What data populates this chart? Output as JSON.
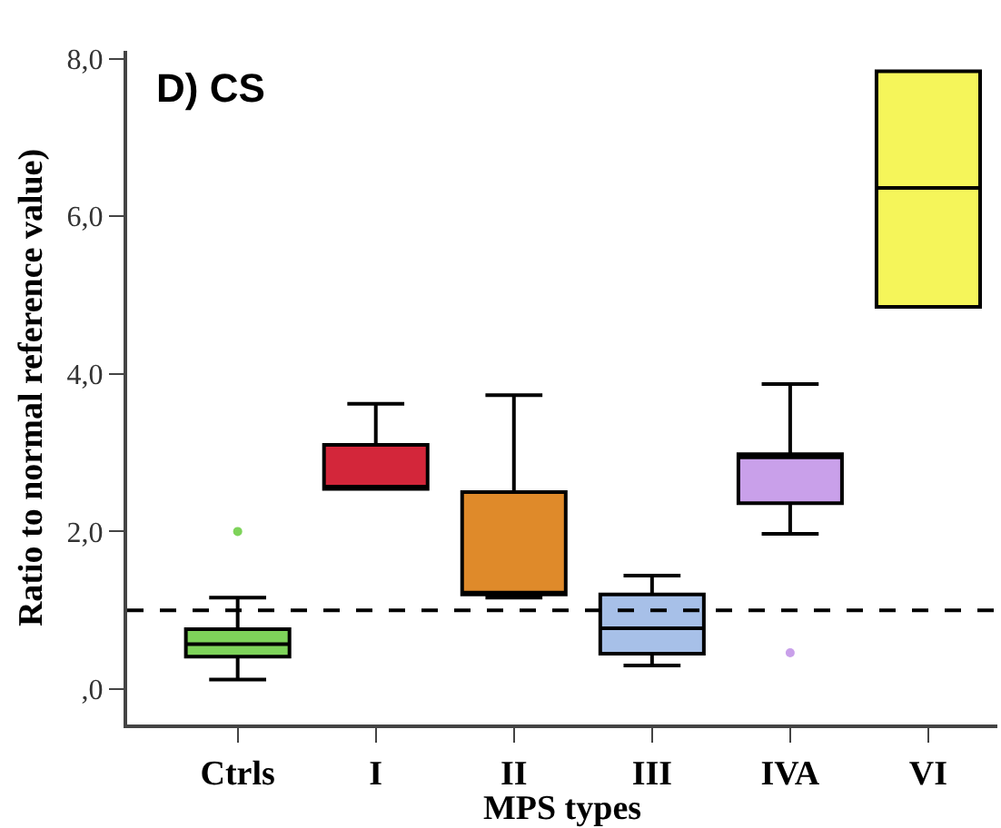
{
  "chart_data": {
    "type": "box",
    "title": "D) CS",
    "xlabel": "MPS types",
    "ylabel": "Ratio to normal reference value)",
    "categories": [
      "Ctrls",
      "I",
      "II",
      "III",
      "IVA",
      "VI"
    ],
    "colors": [
      "#7ed35a",
      "#d3263a",
      "#df8a2a",
      "#a7c0e8",
      "#c9a0ea",
      "#f5f55a"
    ],
    "boxes": [
      {
        "low": 0.12,
        "q1": 0.41,
        "median": 0.57,
        "q3": 0.76,
        "high": 1.16,
        "outliers": [
          2.0
        ]
      },
      {
        "low": 2.54,
        "q1": 2.54,
        "median": 2.57,
        "q3": 3.1,
        "high": 3.62
      },
      {
        "low": 1.16,
        "q1": 1.2,
        "median": 1.22,
        "q3": 2.5,
        "high": 3.73
      },
      {
        "low": 0.3,
        "q1": 0.45,
        "median": 0.77,
        "q3": 1.2,
        "high": 1.44
      },
      {
        "low": 1.97,
        "q1": 2.36,
        "median": 2.94,
        "q3": 2.98,
        "high": 3.87,
        "outliers": [
          0.46
        ]
      },
      {
        "low": 4.85,
        "q1": 4.85,
        "median": 6.36,
        "q3": 7.84,
        "high": 7.84
      }
    ],
    "ylim": [
      -0.45,
      8.1
    ],
    "yticks": [
      {
        "value": 0,
        "label": ",0"
      },
      {
        "value": 2,
        "label": "2,0"
      },
      {
        "value": 4,
        "label": "4,0"
      },
      {
        "value": 6,
        "label": "6,0"
      },
      {
        "value": 8,
        "label": "8,0"
      }
    ],
    "ref_lines": [
      {
        "axis": "y",
        "value": 1.0,
        "line_style": "dashed",
        "color": "#000000"
      }
    ],
    "marker": "circle"
  }
}
